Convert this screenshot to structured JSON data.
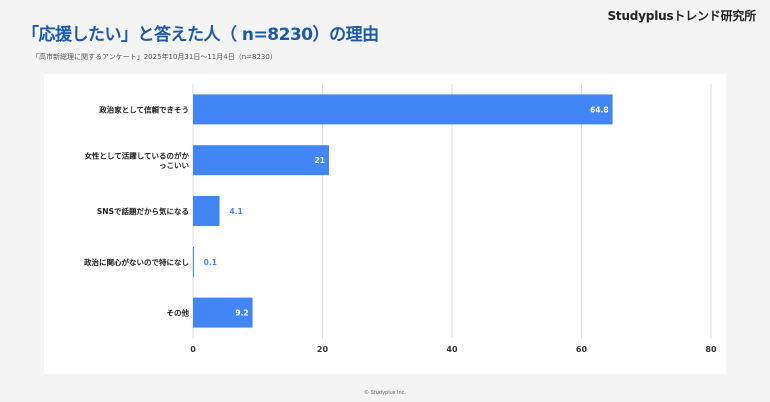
{
  "header": {
    "brand": "Studyplusトレンド研究所",
    "title": "「応援したい」と答えた人（ n=8230）の理由",
    "subtitle": "「高市新総理に関するアンケート」2025年10月31日〜11月4日（n=8230）"
  },
  "footer": {
    "copyright": "© Studyplus Inc."
  },
  "colors": {
    "bar": "#4285f4",
    "small_label": "#4285f4",
    "grid": "#dddddd",
    "inside_label": "#ffffff"
  },
  "chart_data": {
    "type": "bar",
    "orientation": "horizontal",
    "categories": [
      [
        "政治家として信頼できそう"
      ],
      [
        "女性として活躍しているのがか",
        "っこいい"
      ],
      [
        "SNSで話題だから気になる"
      ],
      [
        "政治に関心がないので特になし"
      ],
      [
        "その他"
      ]
    ],
    "values": [
      64.8,
      21,
      4.1,
      0.1,
      9.2
    ],
    "value_labels": [
      "64.8",
      "21",
      "4.1",
      "0.1",
      "9.2"
    ],
    "xlim": [
      0,
      80
    ],
    "xticks": [
      "0",
      "20",
      "40",
      "60",
      "80"
    ],
    "grid": true
  }
}
